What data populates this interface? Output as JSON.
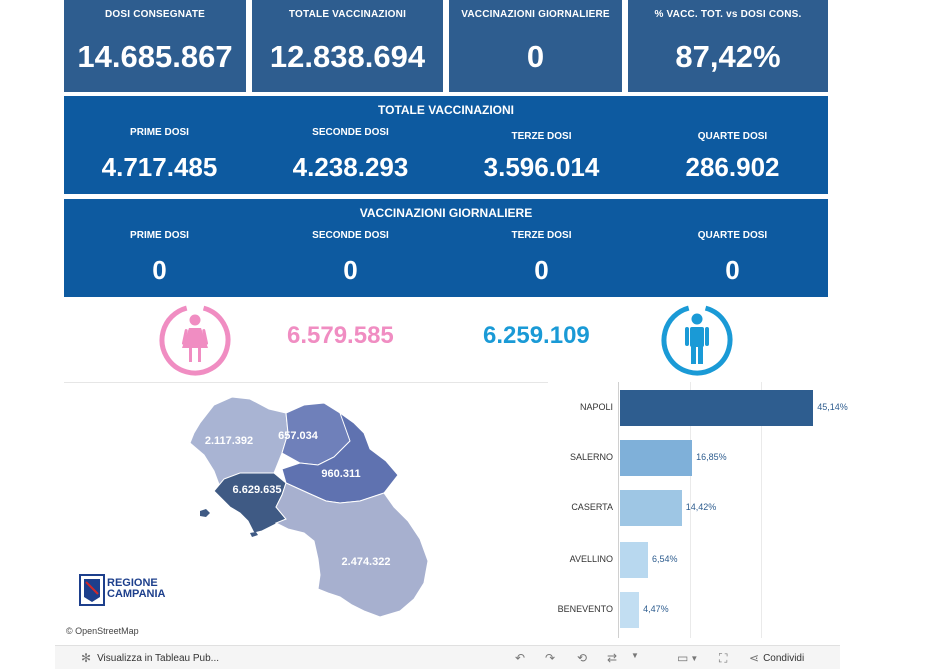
{
  "kpis": [
    {
      "label": "DOSI CONSEGNATE",
      "value": "14.685.867"
    },
    {
      "label": "TOTALE VACCINAZIONI",
      "value": "12.838.694"
    },
    {
      "label": "VACCINAZIONI GIORNALIERE",
      "value": "0"
    },
    {
      "label": "% VACC. TOT. vs DOSI CONS.",
      "value": "87,42%"
    }
  ],
  "totale": {
    "title": "TOTALE VACCINAZIONI",
    "cols": [
      {
        "label": "PRIME DOSI",
        "value": "4.717.485"
      },
      {
        "label": "SECONDE DOSI",
        "value": "4.238.293"
      },
      {
        "label": "TERZE DOSI",
        "value": "3.596.014"
      },
      {
        "label": "QUARTE DOSI",
        "value": "286.902"
      }
    ]
  },
  "giornaliere": {
    "title": "VACCINAZIONI GIORNALIERE",
    "cols": [
      {
        "label": "PRIME DOSI",
        "value": "0"
      },
      {
        "label": "SECONDE DOSI",
        "value": "0"
      },
      {
        "label": "TERZE DOSI",
        "value": "0"
      },
      {
        "label": "QUARTE DOSI",
        "value": "0"
      }
    ]
  },
  "gender": {
    "female_value": "6.579.585",
    "male_value": "6.259.109",
    "female_color": "#f08dc2",
    "male_color": "#1a9ad6",
    "female_icon": "female-person-icon",
    "male_icon": "male-person-icon"
  },
  "map": {
    "provinces": [
      {
        "name": "Caserta",
        "value": "2.117.392"
      },
      {
        "name": "Benevento",
        "value": "657.034"
      },
      {
        "name": "Avellino",
        "value": "960.311"
      },
      {
        "name": "Napoli",
        "value": "6.629.635"
      },
      {
        "name": "Salerno",
        "value": "2.474.322"
      }
    ],
    "logo_line1": "REGIONE",
    "logo_line2": "CAMPANIA",
    "attribution": "© OpenStreetMap"
  },
  "chart_data": {
    "type": "bar",
    "orientation": "horizontal",
    "categories": [
      "NAPOLI",
      "SALERNO",
      "CASERTA",
      "AVELLINO",
      "BENEVENTO"
    ],
    "values": [
      45.14,
      16.85,
      14.42,
      6.54,
      4.47
    ],
    "labels": [
      "45,14%",
      "16,85%",
      "14,42%",
      "6,54%",
      "4,47%"
    ],
    "colors": [
      "#2e5d8f",
      "#7fb0d9",
      "#9ec6e4",
      "#b8d8ef",
      "#c2def2"
    ],
    "xlim": [
      0,
      50
    ]
  },
  "footer": {
    "view_label": "Visualizza in Tableau Pub...",
    "share_label": "Condividi"
  }
}
